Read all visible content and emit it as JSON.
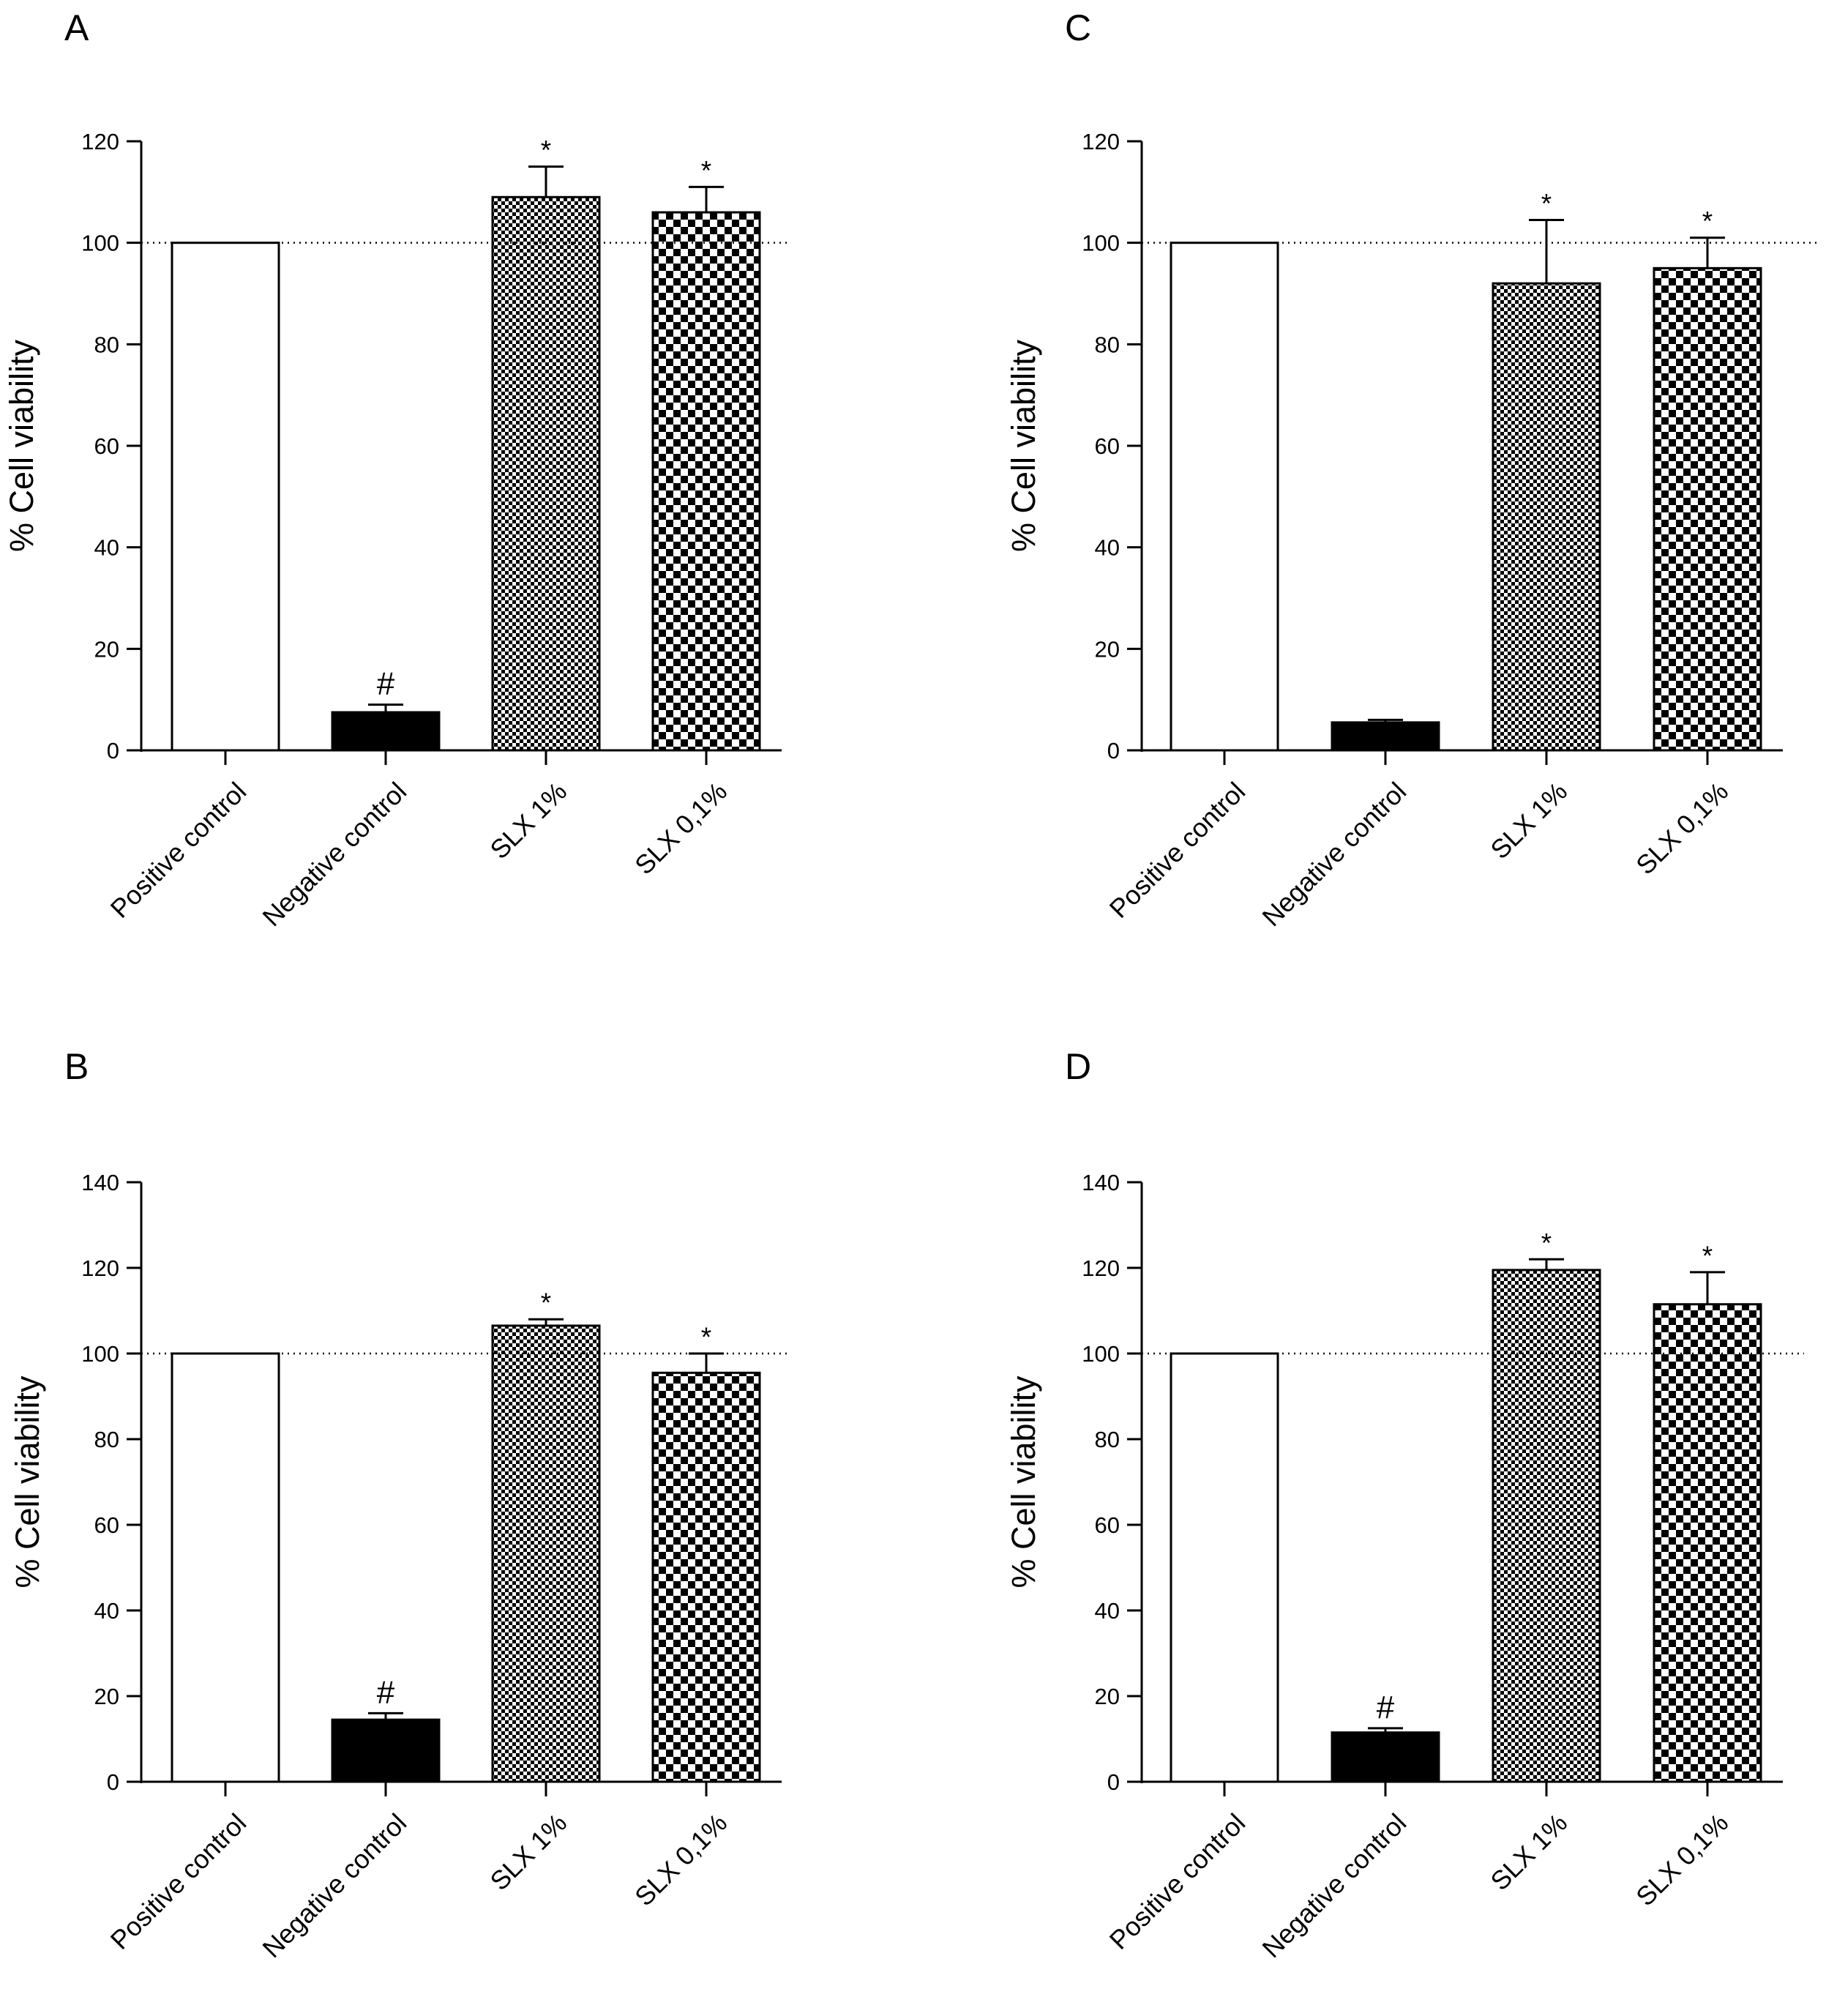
{
  "figure": {
    "panels": [
      {
        "letter": "A"
      },
      {
        "letter": "C"
      },
      {
        "letter": "B"
      },
      {
        "letter": "D"
      }
    ]
  },
  "chart_data": [
    {
      "panel": "A",
      "type": "bar",
      "categories": [
        "Positive control",
        "Negative control",
        "SLX 1%",
        "SLX 0,1%"
      ],
      "values": [
        100,
        7.5,
        109,
        106
      ],
      "errors": [
        0,
        1.5,
        6,
        5
      ],
      "annotations": [
        "",
        "#",
        "*",
        "*"
      ],
      "patterns": [
        "white",
        "black",
        "fine-check",
        "coarse-check"
      ],
      "ylabel": "% Cell viability",
      "ylim": [
        0,
        120
      ],
      "yticks": [
        0,
        20,
        40,
        60,
        80,
        100,
        120
      ],
      "reference_line": 100
    },
    {
      "panel": "C",
      "type": "bar",
      "categories": [
        "Positive control",
        "Negative control",
        "SLX 1%",
        "SLX 0,1%"
      ],
      "values": [
        100,
        5.5,
        92,
        95
      ],
      "errors": [
        0,
        0.5,
        12.5,
        6
      ],
      "annotations": [
        "",
        "",
        "*",
        "*"
      ],
      "patterns": [
        "white",
        "black",
        "fine-check",
        "coarse-check"
      ],
      "ylabel": "% Cell viability",
      "ylim": [
        0,
        120
      ],
      "yticks": [
        0,
        20,
        40,
        60,
        80,
        100,
        120
      ],
      "reference_line": 100
    },
    {
      "panel": "B",
      "type": "bar",
      "categories": [
        "Positive control",
        "Negative control",
        "SLX 1%",
        "SLX 0,1%"
      ],
      "values": [
        100,
        14.5,
        106.5,
        95.5
      ],
      "errors": [
        0,
        1.5,
        1.5,
        4.5
      ],
      "annotations": [
        "",
        "#",
        "*",
        "*"
      ],
      "patterns": [
        "white",
        "black",
        "fine-check",
        "coarse-check"
      ],
      "ylabel": "% Cell viability",
      "ylim": [
        0,
        140
      ],
      "yticks": [
        0,
        20,
        40,
        60,
        80,
        100,
        120,
        140
      ],
      "reference_line": 100
    },
    {
      "panel": "D",
      "type": "bar",
      "categories": [
        "Positive control",
        "Negative control",
        "SLX 1%",
        "SLX 0,1%"
      ],
      "values": [
        100,
        11.5,
        119.5,
        111.5
      ],
      "errors": [
        0,
        1,
        2.5,
        7.5
      ],
      "annotations": [
        "",
        "#",
        "*",
        "*"
      ],
      "patterns": [
        "white",
        "black",
        "fine-check",
        "coarse-check"
      ],
      "ylabel": "% Cell viability",
      "ylim": [
        0,
        140
      ],
      "yticks": [
        0,
        20,
        40,
        60,
        80,
        100,
        120,
        140
      ],
      "reference_line": 100
    }
  ]
}
